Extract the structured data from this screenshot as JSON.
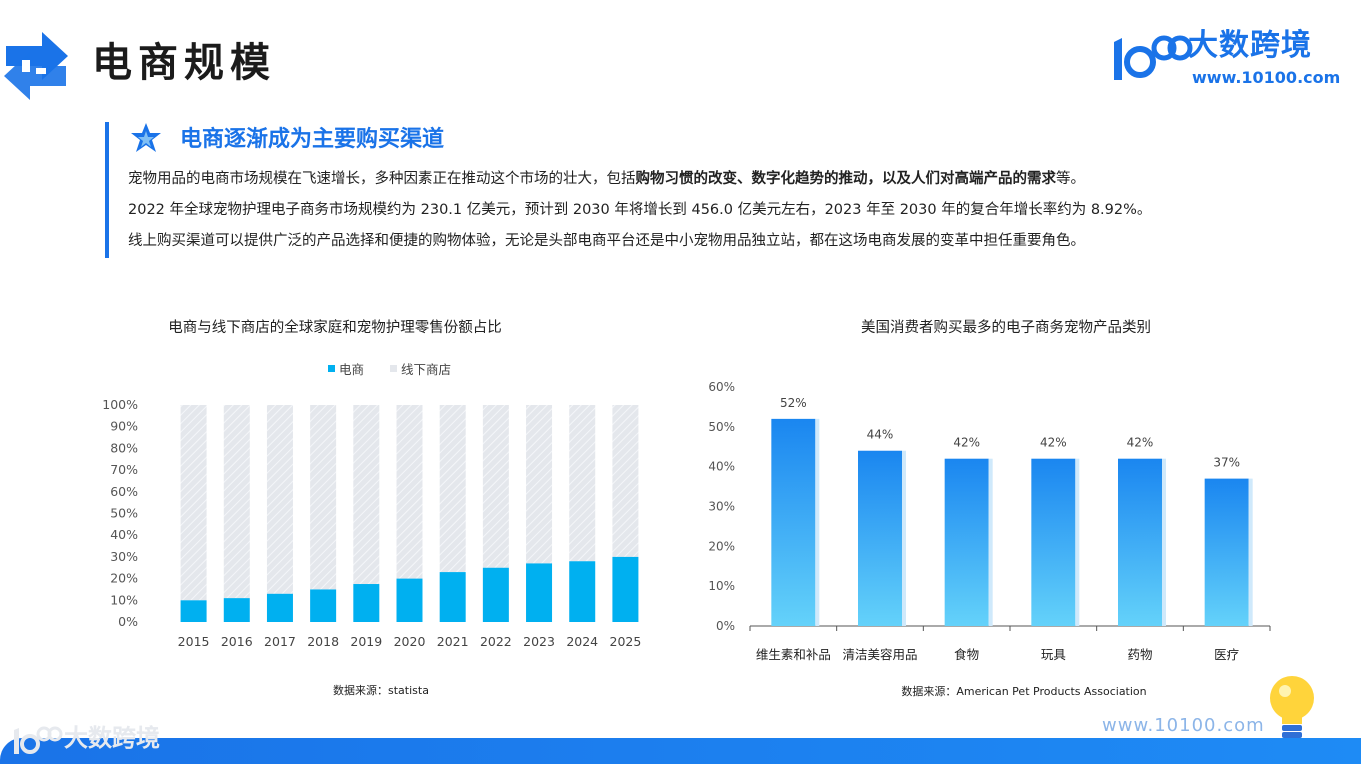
{
  "header": {
    "title": "电商规模",
    "logo_name": "大数跨境",
    "logo_url": "www.10100.com"
  },
  "section": {
    "title": "电商逐渐成为主要购买渠道",
    "p1_prefix": "宠物用品的电商市场规模在飞速增长，多种因素正在推动这个市场的壮大，包括",
    "p1_bold": "购物习惯的改变、数字化趋势的推动，以及人们对高端产品的需求",
    "p1_suffix": "等。",
    "p2": "2022 年全球宠物护理电子商务市场规模约为 230.1 亿美元，预计到 2030 年将增长到 456.0 亿美元左右，2023 年至 2030 年的复合年增长率约为 8.92%。",
    "p3": "线上购买渠道可以提供广泛的产品选择和便捷的购物体验，无论是头部电商平台还是中小宠物用品独立站，都在这场电商发展的变革中担任重要角色。"
  },
  "chart_data": [
    {
      "type": "bar",
      "stacked": true,
      "title": "电商与线下商店的全球家庭和宠物护理零售份额占比",
      "categories": [
        "2015",
        "2016",
        "2017",
        "2018",
        "2019",
        "2020",
        "2021",
        "2022",
        "2023",
        "2024",
        "2025"
      ],
      "series": [
        {
          "name": "电商",
          "values": [
            10,
            11,
            13,
            15,
            17.5,
            20,
            23,
            25,
            27,
            28,
            30
          ],
          "color": "#00b0f0"
        },
        {
          "name": "线下商店",
          "values": [
            90,
            89,
            87,
            85,
            82.5,
            80,
            77,
            75,
            73,
            72,
            70
          ],
          "color": "#e4e7ec"
        }
      ],
      "ylim": [
        0,
        100
      ],
      "yticks": [
        "0%",
        "10%",
        "20%",
        "30%",
        "40%",
        "50%",
        "60%",
        "70%",
        "80%",
        "90%",
        "100%"
      ],
      "legend": "top",
      "source": "数据来源：statista"
    },
    {
      "type": "bar",
      "title": "美国消费者购买最多的电子商务宠物产品类别",
      "categories": [
        "维生素和补品",
        "清洁美容用品",
        "食物",
        "玩具",
        "药物",
        "医疗"
      ],
      "values": [
        52,
        44,
        42,
        42,
        42,
        37
      ],
      "labels": [
        "52%",
        "44%",
        "42%",
        "42%",
        "42%",
        "37%"
      ],
      "ylim": [
        0,
        60
      ],
      "yticks": [
        "0%",
        "10%",
        "20%",
        "30%",
        "40%",
        "50%",
        "60%"
      ],
      "source": "数据来源：American Pet Products Association"
    }
  ],
  "footer": {
    "watermark_url": "www.10100.com",
    "watermark_name": "大数跨境"
  },
  "colors": {
    "brand": "#1a73e8",
    "ecommerce": "#00b0f0",
    "offline": "#e4e7ec",
    "bar_top": "#1a86f0",
    "bar_bottom": "#64d2fa"
  }
}
